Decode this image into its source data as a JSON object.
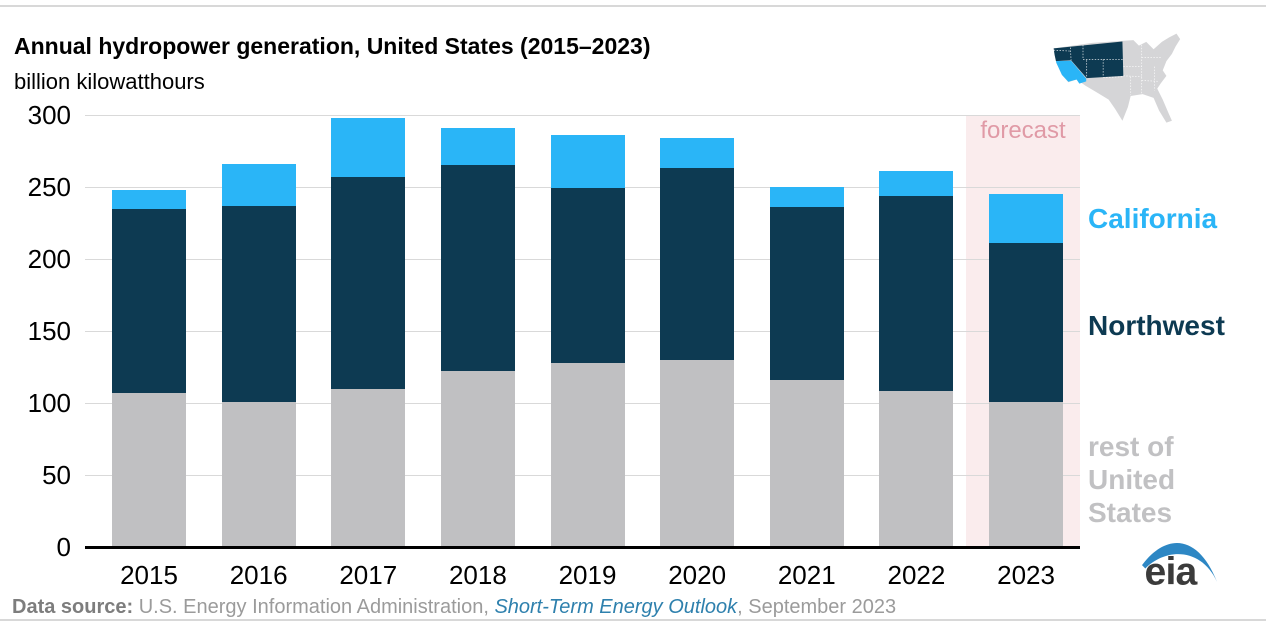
{
  "page": {
    "title": "Annual hydropower generation, United States (2015–2023)",
    "subtitle": "billion kilowatthours"
  },
  "chart_data": {
    "type": "bar",
    "stacked": true,
    "title": "Annual hydropower generation, United States (2015–2023)",
    "ylabel": "billion kilowatthours",
    "categories": [
      "2015",
      "2016",
      "2017",
      "2018",
      "2019",
      "2020",
      "2021",
      "2022",
      "2023"
    ],
    "series": [
      {
        "name": "rest of United States",
        "key": "rest",
        "color": "#c0c0c2",
        "values": [
          107,
          101,
          110,
          122,
          128,
          130,
          116,
          108,
          101
        ]
      },
      {
        "name": "Northwest",
        "key": "northwest",
        "color": "#0d3a52",
        "values": [
          128,
          136,
          147,
          143,
          121,
          133,
          120,
          136,
          110
        ]
      },
      {
        "name": "California",
        "key": "california",
        "color": "#2ab5f7",
        "values": [
          13,
          29,
          41,
          26,
          37,
          21,
          14,
          17,
          34
        ]
      }
    ],
    "totals": [
      248,
      266,
      298,
      291,
      286,
      284,
      250,
      261,
      245
    ],
    "ylim": [
      0,
      300
    ],
    "yticks": [
      0,
      50,
      100,
      150,
      200,
      250,
      300
    ],
    "grid": true,
    "legend_position": "right",
    "forecast": {
      "label": "forecast",
      "category": "2023"
    }
  },
  "forecast_label": "forecast",
  "legend": {
    "california": "California",
    "northwest": "Northwest",
    "rest": "rest of United States"
  },
  "source": {
    "prefix": "Data source: ",
    "agency": "U.S. Energy Information Administration, ",
    "publication": "Short-Term Energy Outlook",
    "suffix": ", September 2023"
  },
  "logo": {
    "text": "eia"
  },
  "colors": {
    "california": "#2ab5f7",
    "northwest": "#0d3a52",
    "rest": "#c0c0c2",
    "forecast_band": "#faeced",
    "forecast_text": "#e09aa6",
    "gridline": "#d9d9d9",
    "axis_line": "#000000",
    "map_base": "#d5d5d7",
    "logo_blue": "#2d87c4",
    "logo_text": "#3b3b3b"
  }
}
